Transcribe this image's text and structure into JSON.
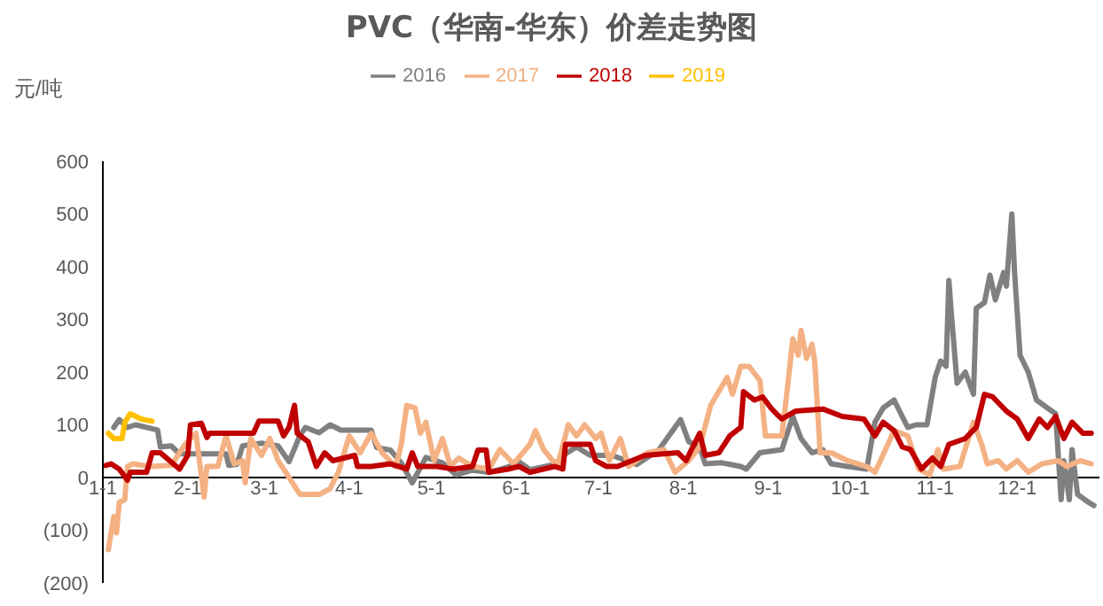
{
  "chart_data": {
    "type": "line",
    "title": "PVC（华南-华东）价差走势图",
    "ylabel": "元/吨",
    "legend": "top",
    "marker": "none",
    "line_style": "solid",
    "grid": false,
    "xlim": [
      "--01-01",
      "--12-31"
    ],
    "xticks": [
      {
        "value": "--01-01",
        "label": "1-1"
      },
      {
        "value": "--02-01",
        "label": "2-1"
      },
      {
        "value": "--03-01",
        "label": "3-1"
      },
      {
        "value": "--04-01",
        "label": "4-1"
      },
      {
        "value": "--05-01",
        "label": "5-1"
      },
      {
        "value": "--06-01",
        "label": "6-1"
      },
      {
        "value": "--07-01",
        "label": "7-1"
      },
      {
        "value": "--08-01",
        "label": "8-1"
      },
      {
        "value": "--09-01",
        "label": "9-1"
      },
      {
        "value": "--10-01",
        "label": "10-1"
      },
      {
        "value": "--11-01",
        "label": "11-1"
      },
      {
        "value": "--12-01",
        "label": "12-1"
      }
    ],
    "ylim": [
      -200,
      600
    ],
    "yticks": [
      {
        "value": -200,
        "label": "(200)"
      },
      {
        "value": -100,
        "label": "(100)"
      },
      0,
      100,
      200,
      300,
      400,
      500,
      600
    ],
    "series": [
      {
        "name": "2016",
        "color": "#808080",
        "x": [
          "--01-05",
          "--01-07",
          "--01-10",
          "--01-13",
          "--01-21",
          "--01-22",
          "--01-26",
          "--01-29",
          "--02-15",
          "--02-16",
          "--02-19",
          "--02-21",
          "--02-28",
          "--03-06",
          "--03-10",
          "--03-14",
          "--03-16",
          "--03-21",
          "--03-25",
          "--03-29",
          "--04-03",
          "--04-09",
          "--04-11",
          "--04-16",
          "--04-20",
          "--04-24",
          "--04-29",
          "--05-05",
          "--05-10",
          "--05-16",
          "--05-22",
          "--05-29",
          "--06-02",
          "--06-06",
          "--06-15",
          "--06-19",
          "--06-23",
          "--06-28",
          "--07-06",
          "--07-15",
          "--07-23",
          "--07-31",
          "--08-03",
          "--08-07",
          "--08-09",
          "--08-15",
          "--08-22",
          "--08-24",
          "--08-29",
          "--09-06",
          "--09-10",
          "--09-13",
          "--09-17",
          "--09-21",
          "--09-24",
          "--09-30",
          "--10-07",
          "--10-10",
          "--10-13",
          "--10-17",
          "--10-19",
          "--10-22",
          "--10-25",
          "--10-29",
          "--11-01",
          "--11-03",
          "--11-05",
          "--11-06",
          "--11-07",
          "--11-09",
          "--11-12",
          "--11-15",
          "--11-16",
          "--11-19",
          "--11-21",
          "--11-23",
          "--11-26",
          "--11-27",
          "--11-29",
          "--11-30",
          "--12-02",
          "--12-05",
          "--12-08",
          "--12-12",
          "--12-15",
          "--12-17",
          "--12-18",
          "--12-20",
          "--12-21",
          "--12-23",
          "--12-27",
          "--12-29"
        ],
        "values": [
          95,
          110,
          95,
          100,
          90,
          58,
          60,
          45,
          45,
          23,
          25,
          60,
          65,
          60,
          30,
          80,
          95,
          85,
          100,
          90,
          90,
          90,
          57,
          52,
          28,
          -10,
          38,
          28,
          5,
          14,
          10,
          20,
          30,
          15,
          25,
          45,
          58,
          42,
          42,
          25,
          52,
          110,
          68,
          58,
          26,
          28,
          21,
          16,
          47,
          53,
          116,
          74,
          47,
          53,
          26,
          21,
          16,
          105,
          132,
          147,
          126,
          95,
          100,
          100,
          190,
          221,
          211,
          374,
          305,
          179,
          200,
          158,
          321,
          332,
          384,
          337,
          389,
          363,
          500,
          389,
          232,
          200,
          147,
          132,
          121,
          -42,
          32,
          -42,
          53,
          -32,
          -47,
          -53
        ]
      },
      {
        "name": "2017",
        "color": "#f4b183",
        "x": [
          "--01-03",
          "--01-05",
          "--01-06",
          "--01-07",
          "--01-09",
          "--01-10",
          "--01-12",
          "--01-18",
          "--01-26",
          "--01-31",
          "--02-04",
          "--02-07",
          "--02-08",
          "--02-12",
          "--02-15",
          "--02-18",
          "--02-21",
          "--02-22",
          "--02-24",
          "--02-28",
          "--03-03",
          "--03-06",
          "--03-08",
          "--03-14",
          "--03-21",
          "--03-25",
          "--03-28",
          "--04-01",
          "--04-05",
          "--04-09",
          "--04-13",
          "--04-18",
          "--04-20",
          "--04-22",
          "--04-25",
          "--04-27",
          "--04-29",
          "--05-02",
          "--05-05",
          "--05-08",
          "--05-11",
          "--05-16",
          "--05-22",
          "--05-26",
          "--05-31",
          "--06-06",
          "--06-08",
          "--06-11",
          "--06-16",
          "--06-20",
          "--06-23",
          "--06-26",
          "--06-30",
          "--07-02",
          "--07-05",
          "--07-09",
          "--07-12",
          "--07-19",
          "--07-25",
          "--07-29",
          "--08-03",
          "--08-07",
          "--08-11",
          "--08-17",
          "--08-19",
          "--08-22",
          "--08-25",
          "--08-29",
          "--08-31",
          "--09-06",
          "--09-08",
          "--09-10",
          "--09-12",
          "--09-13",
          "--09-15",
          "--09-17",
          "--09-18",
          "--09-20",
          "--09-24",
          "--09-30",
          "--10-07",
          "--10-10",
          "--10-12",
          "--10-17",
          "--10-22",
          "--10-26",
          "--10-30",
          "--11-02",
          "--11-04",
          "--11-10",
          "--11-15",
          "--11-18",
          "--11-20",
          "--11-24",
          "--11-27",
          "--12-01",
          "--12-05",
          "--12-10",
          "--12-16",
          "--12-19",
          "--12-24",
          "--12-28"
        ],
        "values": [
          -137,
          -74,
          -105,
          -47,
          -42,
          21,
          26,
          21,
          23,
          63,
          84,
          -37,
          21,
          21,
          79,
          26,
          32,
          -10,
          74,
          42,
          74,
          32,
          16,
          -32,
          -32,
          -21,
          10,
          79,
          47,
          84,
          47,
          21,
          63,
          137,
          132,
          84,
          105,
          32,
          74,
          21,
          37,
          21,
          16,
          53,
          26,
          63,
          89,
          53,
          21,
          100,
          79,
          100,
          74,
          84,
          32,
          74,
          21,
          47,
          53,
          10,
          32,
          58,
          137,
          190,
          158,
          211,
          211,
          184,
          79,
          79,
          168,
          263,
          232,
          279,
          226,
          253,
          221,
          47,
          47,
          32,
          21,
          10,
          32,
          89,
          79,
          16,
          5,
          53,
          16,
          21,
          105,
          63,
          26,
          32,
          16,
          32,
          10,
          26,
          32,
          21,
          32,
          26
        ]
      },
      {
        "name": "2018",
        "color": "#c00000",
        "x": [
          "--01-02",
          "--01-04",
          "--01-07",
          "--01-10",
          "--01-11",
          "--01-17",
          "--01-19",
          "--01-22",
          "--01-29",
          "--02-01",
          "--02-02",
          "--02-06",
          "--02-08",
          "--02-09",
          "--02-25",
          "--02-27",
          "--03-06",
          "--03-08",
          "--03-10",
          "--03-12",
          "--03-13",
          "--03-17",
          "--03-20",
          "--03-23",
          "--03-26",
          "--03-30",
          "--04-03",
          "--04-04",
          "--04-09",
          "--04-16",
          "--04-22",
          "--04-24",
          "--04-26",
          "--05-03",
          "--05-09",
          "--05-16",
          "--05-18",
          "--05-21",
          "--05-22",
          "--05-29",
          "--06-02",
          "--06-06",
          "--06-15",
          "--06-18",
          "--06-19",
          "--06-28",
          "--06-30",
          "--07-04",
          "--07-08",
          "--07-18",
          "--07-30",
          "--08-02",
          "--08-07",
          "--08-09",
          "--08-14",
          "--08-18",
          "--08-22",
          "--08-23",
          "--08-27",
          "--08-30",
          "--09-02",
          "--09-04",
          "--09-06",
          "--09-11",
          "--09-21",
          "--09-28",
          "--10-06",
          "--10-10",
          "--10-13",
          "--10-17",
          "--10-20",
          "--10-23",
          "--10-27",
          "--10-31",
          "--11-03",
          "--11-06",
          "--11-12",
          "--11-16",
          "--11-19",
          "--11-22",
          "--11-27",
          "--12-01",
          "--12-05",
          "--12-09",
          "--12-12",
          "--12-15",
          "--12-18",
          "--12-21",
          "--12-25",
          "--12-28"
        ],
        "values": [
          23,
          26,
          16,
          -5,
          10,
          10,
          47,
          47,
          16,
          42,
          100,
          103,
          76,
          84,
          84,
          107,
          107,
          79,
          95,
          137,
          84,
          68,
          21,
          47,
          32,
          37,
          42,
          21,
          21,
          26,
          16,
          47,
          21,
          21,
          16,
          21,
          52,
          52,
          10,
          16,
          21,
          10,
          21,
          16,
          63,
          63,
          32,
          21,
          21,
          42,
          47,
          32,
          84,
          42,
          47,
          79,
          95,
          163,
          147,
          153,
          132,
          121,
          111,
          126,
          130,
          116,
          111,
          79,
          105,
          89,
          58,
          53,
          16,
          37,
          21,
          63,
          74,
          95,
          158,
          153,
          126,
          111,
          74,
          111,
          95,
          116,
          74,
          105,
          84,
          84
        ]
      },
      {
        "name": "2019",
        "color": "#ffc000",
        "x": [
          "--01-03",
          "--01-05",
          "--01-08",
          "--01-09",
          "--01-11",
          "--01-15",
          "--01-19"
        ],
        "values": [
          84,
          74,
          74,
          105,
          121,
          111,
          107
        ]
      }
    ]
  }
}
